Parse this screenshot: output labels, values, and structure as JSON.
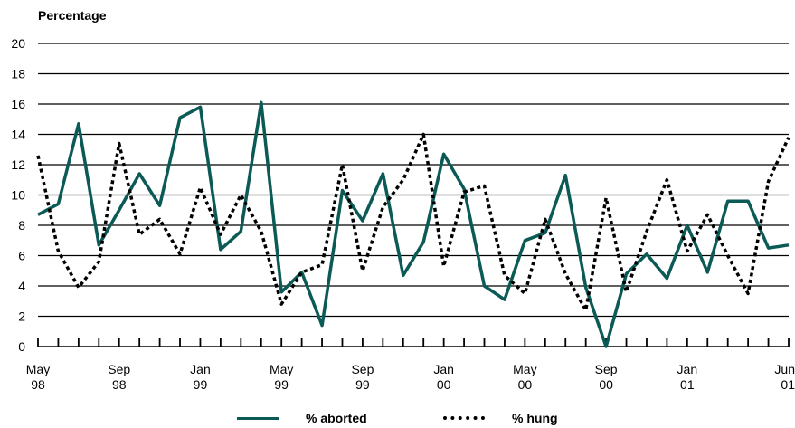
{
  "chart_data": {
    "type": "line",
    "ylabel": "Percentage",
    "ylim": [
      0,
      20
    ],
    "yticks": [
      0,
      2,
      4,
      6,
      8,
      10,
      12,
      14,
      16,
      18,
      20
    ],
    "grid": true,
    "legend_position": "bottom",
    "x": [
      "May 98",
      "Jun 98",
      "Jul 98",
      "Aug 98",
      "Sep 98",
      "Oct 98",
      "Nov 98",
      "Dec 98",
      "Jan 99",
      "Feb 99",
      "Mar 99",
      "Apr 99",
      "May 99",
      "Jun 99",
      "Jul 99",
      "Aug 99",
      "Sep 99",
      "Oct 99",
      "Nov 99",
      "Dec 99",
      "Jan 00",
      "Feb 00",
      "Mar 00",
      "Apr 00",
      "May 00",
      "Jun 00",
      "Jul 00",
      "Aug 00",
      "Sep 00",
      "Oct 00",
      "Nov 00",
      "Dec 00",
      "Jan 01",
      "Feb 01",
      "Mar 01",
      "Apr 01",
      "May 01",
      "Jun 01"
    ],
    "x_tick_labels": [
      {
        "index": 0,
        "month": "May",
        "year": "98"
      },
      {
        "index": 4,
        "month": "Sep",
        "year": "98"
      },
      {
        "index": 8,
        "month": "Jan",
        "year": "99"
      },
      {
        "index": 12,
        "month": "May",
        "year": "99"
      },
      {
        "index": 16,
        "month": "Sep",
        "year": "99"
      },
      {
        "index": 20,
        "month": "Jan",
        "year": "00"
      },
      {
        "index": 24,
        "month": "May",
        "year": "00"
      },
      {
        "index": 28,
        "month": "Sep",
        "year": "00"
      },
      {
        "index": 32,
        "month": "Jan",
        "year": "01"
      },
      {
        "index": 37,
        "month": "Jun",
        "year": "01"
      }
    ],
    "series": [
      {
        "name": "% aborted",
        "color": "#0b5a55",
        "style": "solid",
        "values": [
          8.7,
          9.4,
          14.7,
          6.7,
          9.0,
          11.4,
          9.3,
          15.1,
          15.8,
          6.4,
          7.6,
          16.1,
          3.6,
          4.9,
          1.4,
          10.3,
          8.3,
          11.4,
          4.7,
          6.9,
          12.7,
          10.4,
          4.0,
          3.1,
          7.0,
          7.5,
          11.3,
          3.9,
          0.0,
          4.8,
          6.1,
          4.5,
          8.0,
          4.9,
          9.6,
          9.6,
          6.5,
          6.7
        ]
      },
      {
        "name": "% hung",
        "color": "#000000",
        "style": "dotted",
        "values": [
          12.6,
          6.3,
          3.9,
          5.6,
          13.4,
          7.4,
          8.4,
          6.1,
          10.5,
          7.4,
          10.0,
          7.6,
          2.8,
          4.9,
          5.4,
          12.0,
          5.0,
          9.2,
          11.0,
          14.0,
          5.3,
          10.2,
          10.6,
          4.7,
          3.5,
          8.4,
          4.8,
          2.4,
          9.8,
          3.6,
          7.6,
          11.0,
          6.3,
          8.7,
          6.0,
          3.5,
          10.9,
          13.8
        ]
      }
    ]
  }
}
